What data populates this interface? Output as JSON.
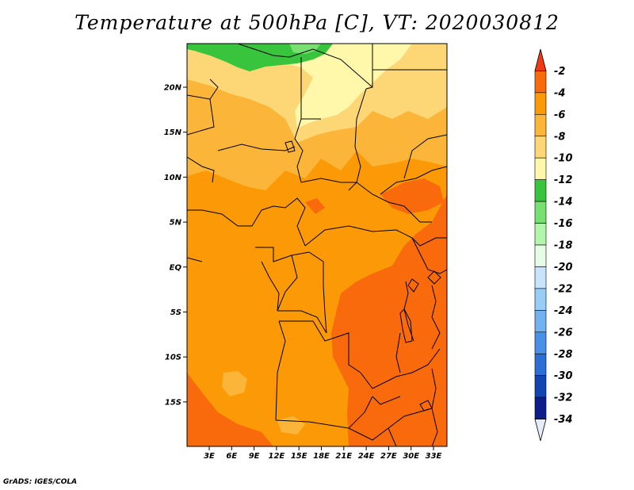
{
  "title": "Temperature at 500hPa [C], VT: 2020030812",
  "credit": "GrADS: IGES/COLA",
  "lat_labels": [
    "20N",
    "15N",
    "10N",
    "5N",
    "EQ",
    "5S",
    "10S",
    "15S"
  ],
  "lon_labels": [
    "3E",
    "6E",
    "9E",
    "12E",
    "15E",
    "18E",
    "21E",
    "24E",
    "27E",
    "30E",
    "33E"
  ],
  "colorbar": {
    "labels": [
      "-2",
      "-4",
      "-6",
      "-8",
      "-10",
      "-12",
      "-14",
      "-16",
      "-18",
      "-20",
      "-22",
      "-24",
      "-26",
      "-28",
      "-30",
      "-32",
      "-34"
    ],
    "colors": [
      "#f03a16",
      "#f96a0c",
      "#fb9a06",
      "#fbb63a",
      "#fdd775",
      "#fff7a9",
      "#38c43c",
      "#78e070",
      "#b2f6ac",
      "#e4fde4",
      "#c8e4fa",
      "#98cef6",
      "#72b2f0",
      "#4a90e8",
      "#2a6ed6",
      "#1245b4",
      "#0b1e8a",
      "#e6ebfa"
    ]
  },
  "palette": {
    "warmest": "#f96a0c",
    "warm": "#fb9a06",
    "mid": "#fbb63a",
    "cool": "#fdd775",
    "coolest": "#fff7a9",
    "green": "#38c43c",
    "light_green": "#78e070"
  }
}
